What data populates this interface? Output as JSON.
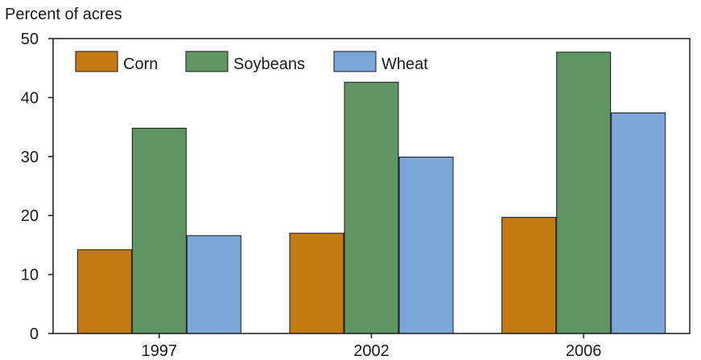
{
  "chart_data": {
    "type": "bar",
    "title": "",
    "ylabel": "Percent of acres",
    "xlabel": "",
    "categories": [
      "1997",
      "2002",
      "2006"
    ],
    "series": [
      {
        "name": "Corn",
        "color": "#c47a12",
        "values": [
          14.2,
          17.0,
          19.7
        ]
      },
      {
        "name": "Soybeans",
        "color": "#5f9562",
        "values": [
          34.8,
          42.6,
          47.7
        ]
      },
      {
        "name": "Wheat",
        "color": "#7ba7d8",
        "values": [
          16.6,
          29.9,
          37.4
        ]
      }
    ],
    "ylim": [
      0,
      50
    ],
    "yticks": [
      "0",
      "10",
      "20",
      "30",
      "40",
      "50"
    ],
    "legend_position": "top-left",
    "grid": false
  }
}
